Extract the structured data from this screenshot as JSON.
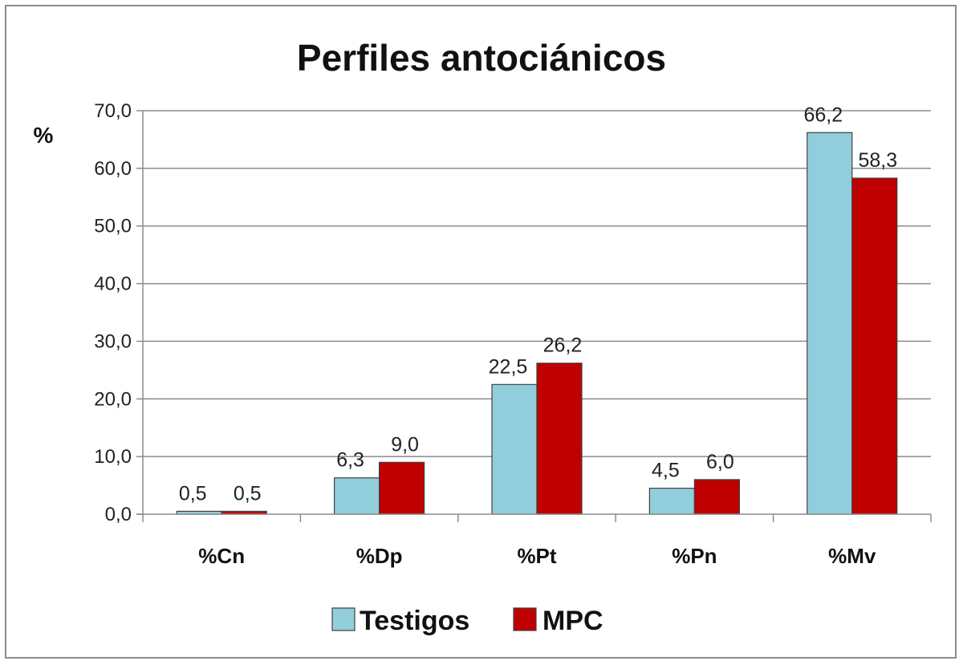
{
  "chart_data": {
    "type": "bar",
    "title": "Perfiles antociánicos",
    "ylabel": "%",
    "xlabel": "",
    "ylim": [
      0,
      70
    ],
    "yticks": [
      "0,0",
      "10,0",
      "20,0",
      "30,0",
      "40,0",
      "50,0",
      "60,0",
      "70,0"
    ],
    "ytick_values": [
      0,
      10,
      20,
      30,
      40,
      50,
      60,
      70
    ],
    "grid": true,
    "legend_position": "bottom",
    "categories": [
      "%Cn",
      "%Dp",
      "%Pt",
      "%Pn",
      "%Mv"
    ],
    "series": [
      {
        "name": "Testigos",
        "color": "#92cddc",
        "values": [
          0.5,
          6.3,
          22.5,
          4.5,
          66.2
        ],
        "labels": [
          "0,5",
          "6,3",
          "22,5",
          "4,5",
          "66,2"
        ]
      },
      {
        "name": "MPC",
        "color": "#c00000",
        "values": [
          0.5,
          9.0,
          26.2,
          6.0,
          58.3
        ],
        "labels": [
          "0,5",
          "9,0",
          "26,2",
          "6,0",
          "58,3"
        ]
      }
    ]
  }
}
